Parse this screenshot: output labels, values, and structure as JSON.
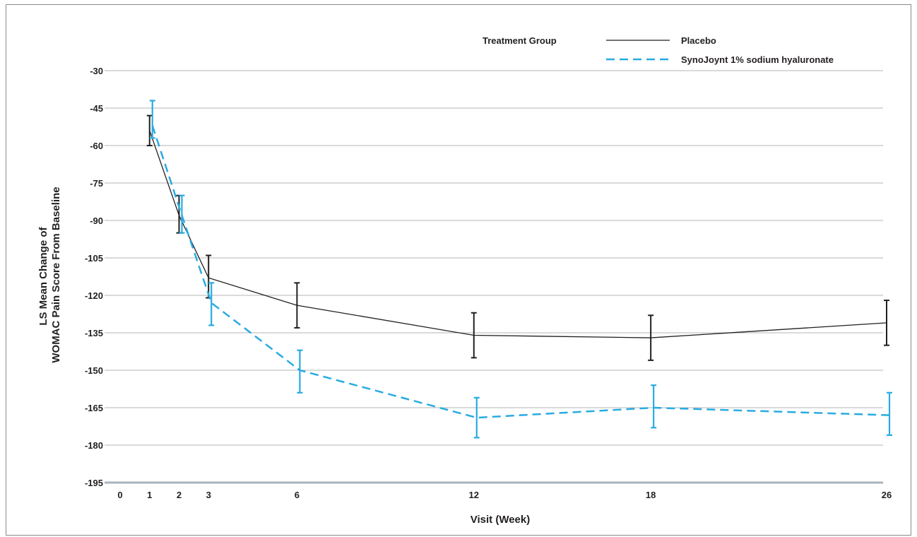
{
  "chart_data": {
    "type": "line",
    "xlabel": "Visit (Week)",
    "ylabel_lines": [
      "LS Mean Change of",
      "WOMAC Pain Score From Baseline"
    ],
    "x_ticks": [
      0,
      1,
      2,
      3,
      6,
      12,
      18,
      26
    ],
    "y_ticks": [
      -30,
      -45,
      -60,
      -75,
      -90,
      -105,
      -120,
      -135,
      -150,
      -165,
      -180,
      -195
    ],
    "xlim": [
      0,
      26
    ],
    "ylim": [
      -195,
      -30
    ],
    "grid": "horizontal",
    "legend": {
      "title": "Treatment Group",
      "placement": "top-right"
    },
    "series": [
      {
        "name": "Placebo",
        "color": "#231f20",
        "style": "solid",
        "x": [
          1,
          2,
          3,
          6,
          12,
          18,
          26
        ],
        "y": [
          -54,
          -88,
          -113,
          -124,
          -136,
          -137,
          -131
        ],
        "err_low": [
          -60,
          -95,
          -121,
          -133,
          -145,
          -146,
          -140
        ],
        "err_high": [
          -48,
          -80,
          -104,
          -115,
          -127,
          -128,
          -122
        ]
      },
      {
        "name": "SynoJoynt 1% sodium hyaluronate",
        "color": "#29abe2",
        "style": "dashed",
        "x": [
          1,
          2,
          3,
          6,
          12,
          18,
          26
        ],
        "y": [
          -52,
          -88,
          -123,
          -150,
          -169,
          -165,
          -168
        ],
        "err_low": [
          -57,
          -95,
          -132,
          -159,
          -177,
          -173,
          -176
        ],
        "err_high": [
          -42,
          -80,
          -115,
          -142,
          -161,
          -156,
          -159
        ]
      }
    ]
  }
}
